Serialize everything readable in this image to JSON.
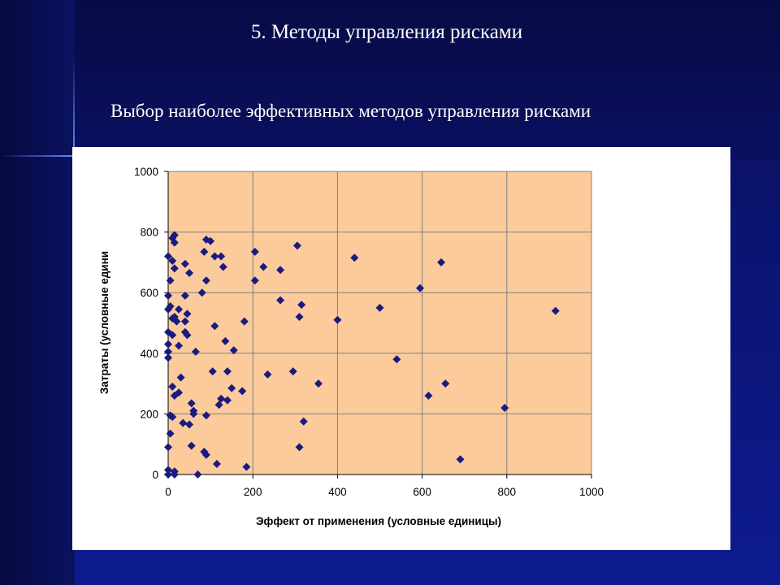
{
  "slide": {
    "title": "5. Методы управления рисками",
    "subtitle": "Выбор наиболее эффективных методов управления рисками"
  },
  "colors": {
    "background": "#0b1470",
    "plot_area": "#fbcb9c",
    "marker": "#1a1a80",
    "text": "#ffffff"
  },
  "chart_data": {
    "type": "scatter",
    "xlabel": "Эффект от применения (условные единицы)",
    "ylabel": "Затраты (условные едини",
    "xlim": [
      0,
      1000
    ],
    "ylim": [
      0,
      1000
    ],
    "xticks": [
      "0",
      "200",
      "400",
      "600",
      "800",
      "1000"
    ],
    "yticks": [
      "0",
      "200",
      "400",
      "600",
      "800",
      "1000"
    ],
    "grid": true,
    "marker": "diamond",
    "points": [
      [
        0,
        720
      ],
      [
        0,
        590
      ],
      [
        0,
        545
      ],
      [
        0,
        470
      ],
      [
        0,
        430
      ],
      [
        0,
        405
      ],
      [
        0,
        385
      ],
      [
        0,
        90
      ],
      [
        0,
        15
      ],
      [
        0,
        0
      ],
      [
        5,
        555
      ],
      [
        5,
        640
      ],
      [
        5,
        195
      ],
      [
        5,
        135
      ],
      [
        10,
        780
      ],
      [
        10,
        705
      ],
      [
        10,
        515
      ],
      [
        10,
        460
      ],
      [
        10,
        290
      ],
      [
        10,
        190
      ],
      [
        15,
        790
      ],
      [
        15,
        765
      ],
      [
        15,
        680
      ],
      [
        15,
        520
      ],
      [
        15,
        260
      ],
      [
        15,
        10
      ],
      [
        15,
        0
      ],
      [
        20,
        505
      ],
      [
        25,
        545
      ],
      [
        25,
        425
      ],
      [
        25,
        270
      ],
      [
        30,
        320
      ],
      [
        35,
        170
      ],
      [
        40,
        695
      ],
      [
        40,
        590
      ],
      [
        40,
        505
      ],
      [
        40,
        470
      ],
      [
        45,
        530
      ],
      [
        45,
        460
      ],
      [
        50,
        665
      ],
      [
        50,
        165
      ],
      [
        55,
        235
      ],
      [
        55,
        95
      ],
      [
        60,
        210
      ],
      [
        60,
        200
      ],
      [
        65,
        405
      ],
      [
        70,
        0
      ],
      [
        80,
        600
      ],
      [
        85,
        75
      ],
      [
        85,
        735
      ],
      [
        90,
        640
      ],
      [
        90,
        195
      ],
      [
        90,
        775
      ],
      [
        90,
        65
      ],
      [
        100,
        770
      ],
      [
        105,
        340
      ],
      [
        110,
        490
      ],
      [
        110,
        720
      ],
      [
        115,
        35
      ],
      [
        120,
        230
      ],
      [
        125,
        720
      ],
      [
        125,
        250
      ],
      [
        130,
        685
      ],
      [
        135,
        440
      ],
      [
        140,
        340
      ],
      [
        140,
        245
      ],
      [
        150,
        285
      ],
      [
        155,
        410
      ],
      [
        175,
        275
      ],
      [
        180,
        505
      ],
      [
        185,
        25
      ],
      [
        205,
        735
      ],
      [
        205,
        640
      ],
      [
        225,
        685
      ],
      [
        235,
        330
      ],
      [
        265,
        675
      ],
      [
        265,
        575
      ],
      [
        295,
        340
      ],
      [
        305,
        755
      ],
      [
        310,
        90
      ],
      [
        310,
        520
      ],
      [
        315,
        560
      ],
      [
        320,
        175
      ],
      [
        355,
        300
      ],
      [
        400,
        510
      ],
      [
        440,
        715
      ],
      [
        500,
        550
      ],
      [
        540,
        380
      ],
      [
        595,
        615
      ],
      [
        615,
        260
      ],
      [
        645,
        700
      ],
      [
        655,
        300
      ],
      [
        690,
        50
      ],
      [
        795,
        220
      ],
      [
        915,
        540
      ]
    ]
  }
}
